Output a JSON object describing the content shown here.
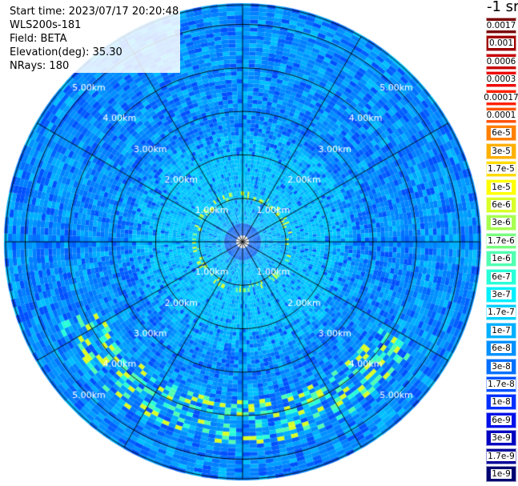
{
  "info": {
    "start_time": "Start time: 2023/07/17 20:20:48",
    "instrument": "WLS200s-181",
    "field": "Field: BETA",
    "elevation": "Elevation(deg): 35.30",
    "nrays": "NRays: 180"
  },
  "range_rings": {
    "unit": "km",
    "labels": [
      "1.00km",
      "2.00km",
      "3.00km",
      "4.00km",
      "5.00km"
    ],
    "values_km": [
      1,
      2,
      3,
      4,
      5
    ],
    "max_range_km": 5.45
  },
  "spokes_deg": [
    0,
    30,
    60,
    90,
    120,
    150,
    180,
    210,
    240,
    270,
    300,
    330
  ],
  "legend": {
    "unit": "-1 sr",
    "bins": [
      {
        "label": "0.0017",
        "color": "#7a0000"
      },
      {
        "label": "0.001",
        "color": "#a00000"
      },
      {
        "label": "0.0006",
        "color": "#c80000"
      },
      {
        "label": "0.0003",
        "color": "#ee0000"
      },
      {
        "label": "0.00017",
        "color": "#ff2000"
      },
      {
        "label": "0.0001",
        "color": "#ff5000"
      },
      {
        "label": "6e-5",
        "color": "#ff8000"
      },
      {
        "label": "3e-5",
        "color": "#ffb000"
      },
      {
        "label": "1.7e-5",
        "color": "#ffdc00"
      },
      {
        "label": "1e-5",
        "color": "#ffff00"
      },
      {
        "label": "6e-6",
        "color": "#d8ff28"
      },
      {
        "label": "3e-6",
        "color": "#a8ff50"
      },
      {
        "label": "1.7e-6",
        "color": "#78ff80"
      },
      {
        "label": "1e-6",
        "color": "#50ffb0"
      },
      {
        "label": "6e-7",
        "color": "#28ffd8"
      },
      {
        "label": "3e-7",
        "color": "#00f0ff"
      },
      {
        "label": "1.7e-7",
        "color": "#00d0ff"
      },
      {
        "label": "1e-7",
        "color": "#00b0ff"
      },
      {
        "label": "6e-8",
        "color": "#0090ff"
      },
      {
        "label": "3e-8",
        "color": "#0070ff"
      },
      {
        "label": "1.7e-8",
        "color": "#0050ff"
      },
      {
        "label": "1e-8",
        "color": "#0030ff"
      },
      {
        "label": "6e-9",
        "color": "#0010e8"
      },
      {
        "label": "3e-9",
        "color": "#0000c0"
      },
      {
        "label": "1.7e-9",
        "color": "#000098"
      },
      {
        "label": "1e-9",
        "color": "#000070"
      }
    ]
  },
  "data_palette": {
    "background_blue": "#0080ff",
    "mid_blue": "#0070ff",
    "light_blue": "#00b0ff",
    "cyan": "#00d0ff",
    "green": "#78ff80",
    "yellow": "#ffff00"
  }
}
